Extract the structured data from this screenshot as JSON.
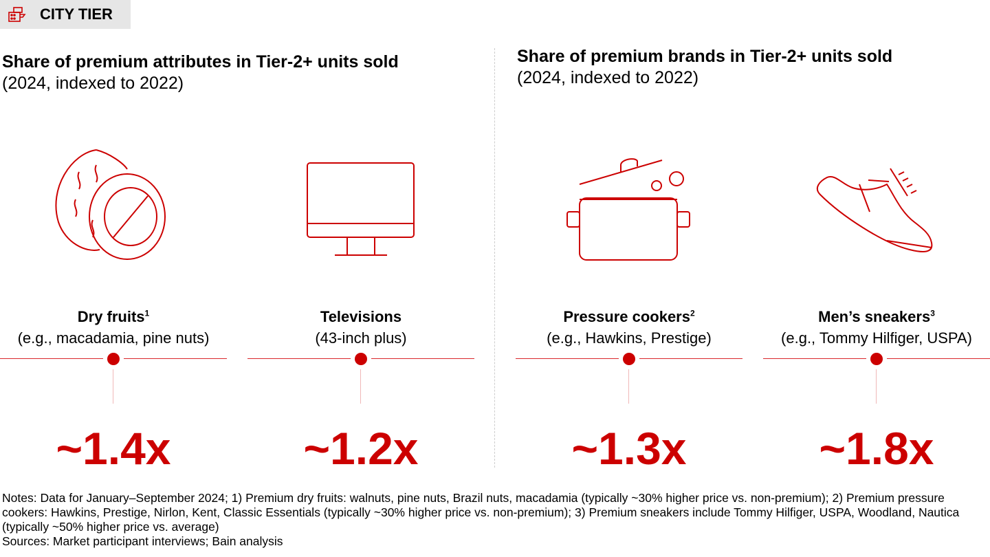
{
  "header": {
    "tag": "CITY TIER",
    "icon": "city-tier-icon"
  },
  "left": {
    "title": "Share of premium attributes in Tier-2+ units sold",
    "subtitle": "(2024, indexed to 2022)"
  },
  "right": {
    "title": "Share of premium brands in Tier-2+ units sold",
    "subtitle": "(2024, indexed to 2022)"
  },
  "items": [
    {
      "name": "Dry fruits",
      "sup": "1",
      "detail": "(e.g., macadamia, pine nuts)",
      "value": "~1.4x",
      "icon": "walnut-icon"
    },
    {
      "name": "Televisions",
      "sup": "",
      "detail": "(43-inch plus)",
      "value": "~1.2x",
      "icon": "television-icon"
    },
    {
      "name": "Pressure cookers",
      "sup": "2",
      "detail": "(e.g., Hawkins, Prestige)",
      "value": "~1.3x",
      "icon": "pressure-cooker-icon"
    },
    {
      "name": "Men’s sneakers",
      "sup": "3",
      "detail": "(e.g., Tommy Hilfiger, USPA)",
      "value": "~1.8x",
      "icon": "sneaker-icon"
    }
  ],
  "notes": [
    "Notes: Data for January–September 2024; 1) Premium dry fruits: walnuts, pine nuts, Brazil nuts, macadamia (typically ~30% higher price vs. non-premium); 2) Premium pressure cookers: Hawkins, Prestige, Nirlon, Kent, Classic Essentials (typically ~30% higher price vs. non-premium); 3) Premium sneakers include Tommy Hilfiger, USPA, Woodland, Nautica (typically ~50% higher price vs. average)",
    "Sources: Market participant interviews; Bain analysis"
  ],
  "colors": {
    "accent": "#cc0000"
  }
}
